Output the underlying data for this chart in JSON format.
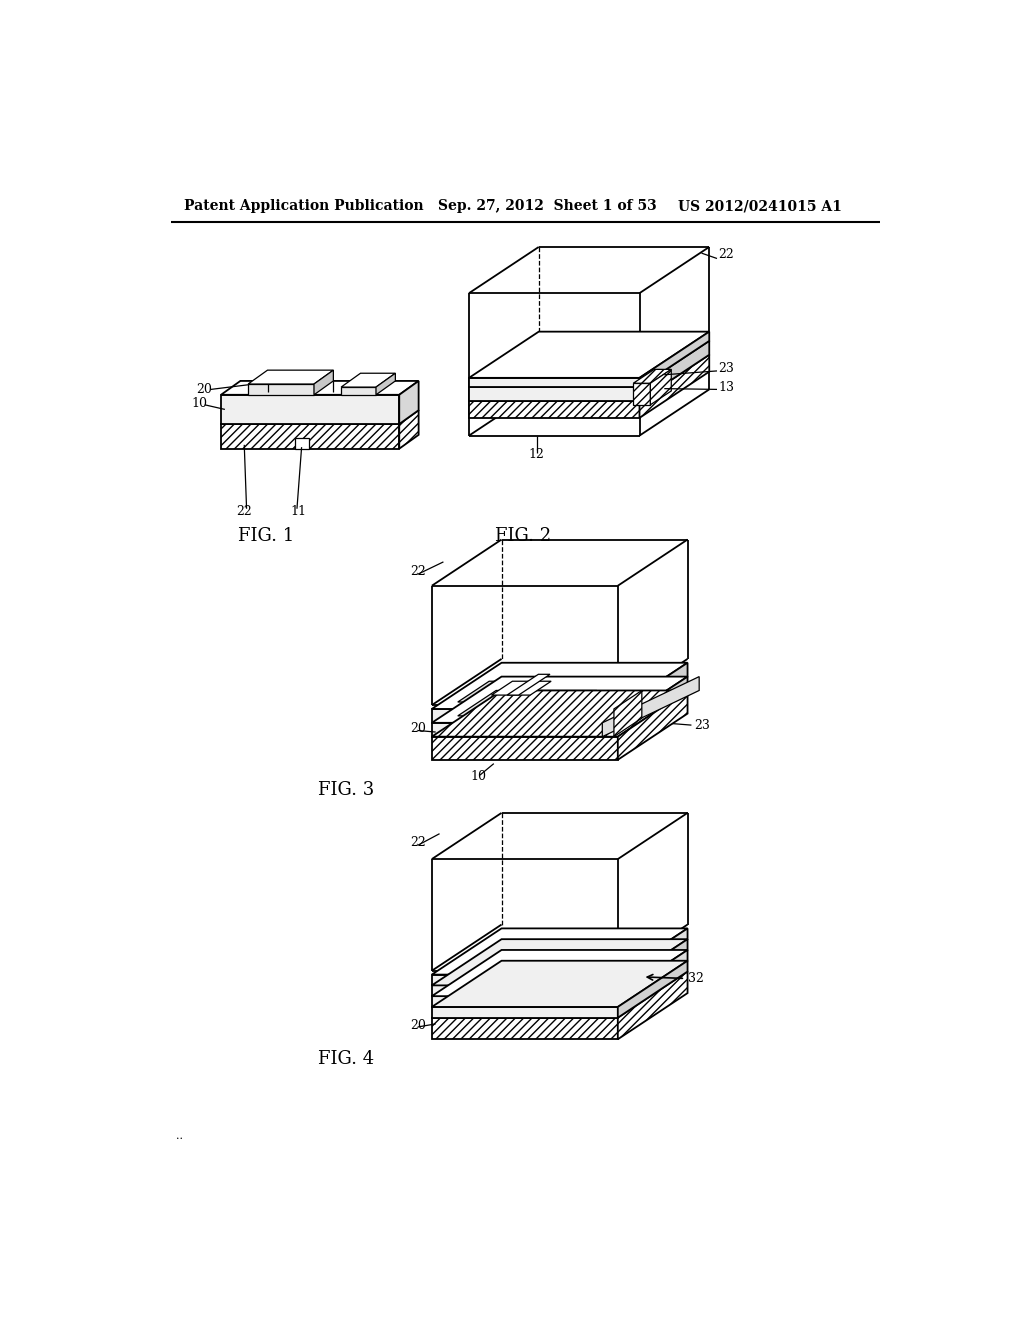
{
  "header_left": "Patent Application Publication",
  "header_center": "Sep. 27, 2012  Sheet 1 of 53",
  "header_right": "US 2012/0241015 A1",
  "background_color": "#ffffff",
  "fig1_label": "FIG. 1",
  "fig2_label": "FIG. 2",
  "fig3_label": "FIG. 3",
  "fig4_label": "FIG. 4"
}
